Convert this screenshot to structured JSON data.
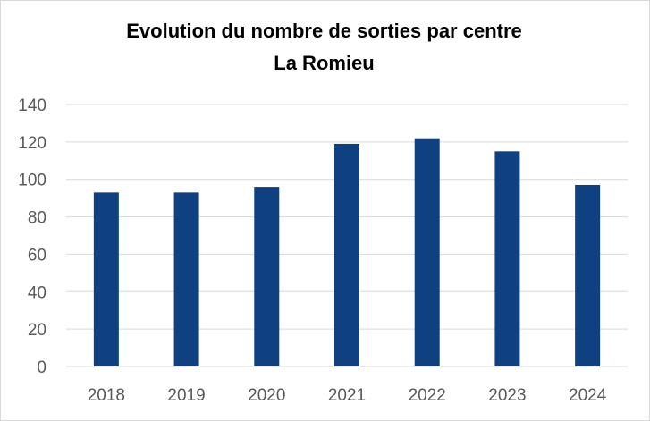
{
  "chart_data": {
    "type": "bar",
    "title": "Evolution du nombre de sorties par centre",
    "subtitle": "La Romieu",
    "xlabel": "",
    "ylabel": "",
    "categories": [
      "2018",
      "2019",
      "2020",
      "2021",
      "2022",
      "2023",
      "2024"
    ],
    "values": [
      93,
      93,
      96,
      119,
      122,
      115,
      97
    ],
    "ylim": [
      0,
      140
    ],
    "yticks": [
      "0",
      "20",
      "40",
      "60",
      "80",
      "100",
      "120",
      "140"
    ],
    "grid": true,
    "legend": "none",
    "bar_color": "#0f4180"
  }
}
